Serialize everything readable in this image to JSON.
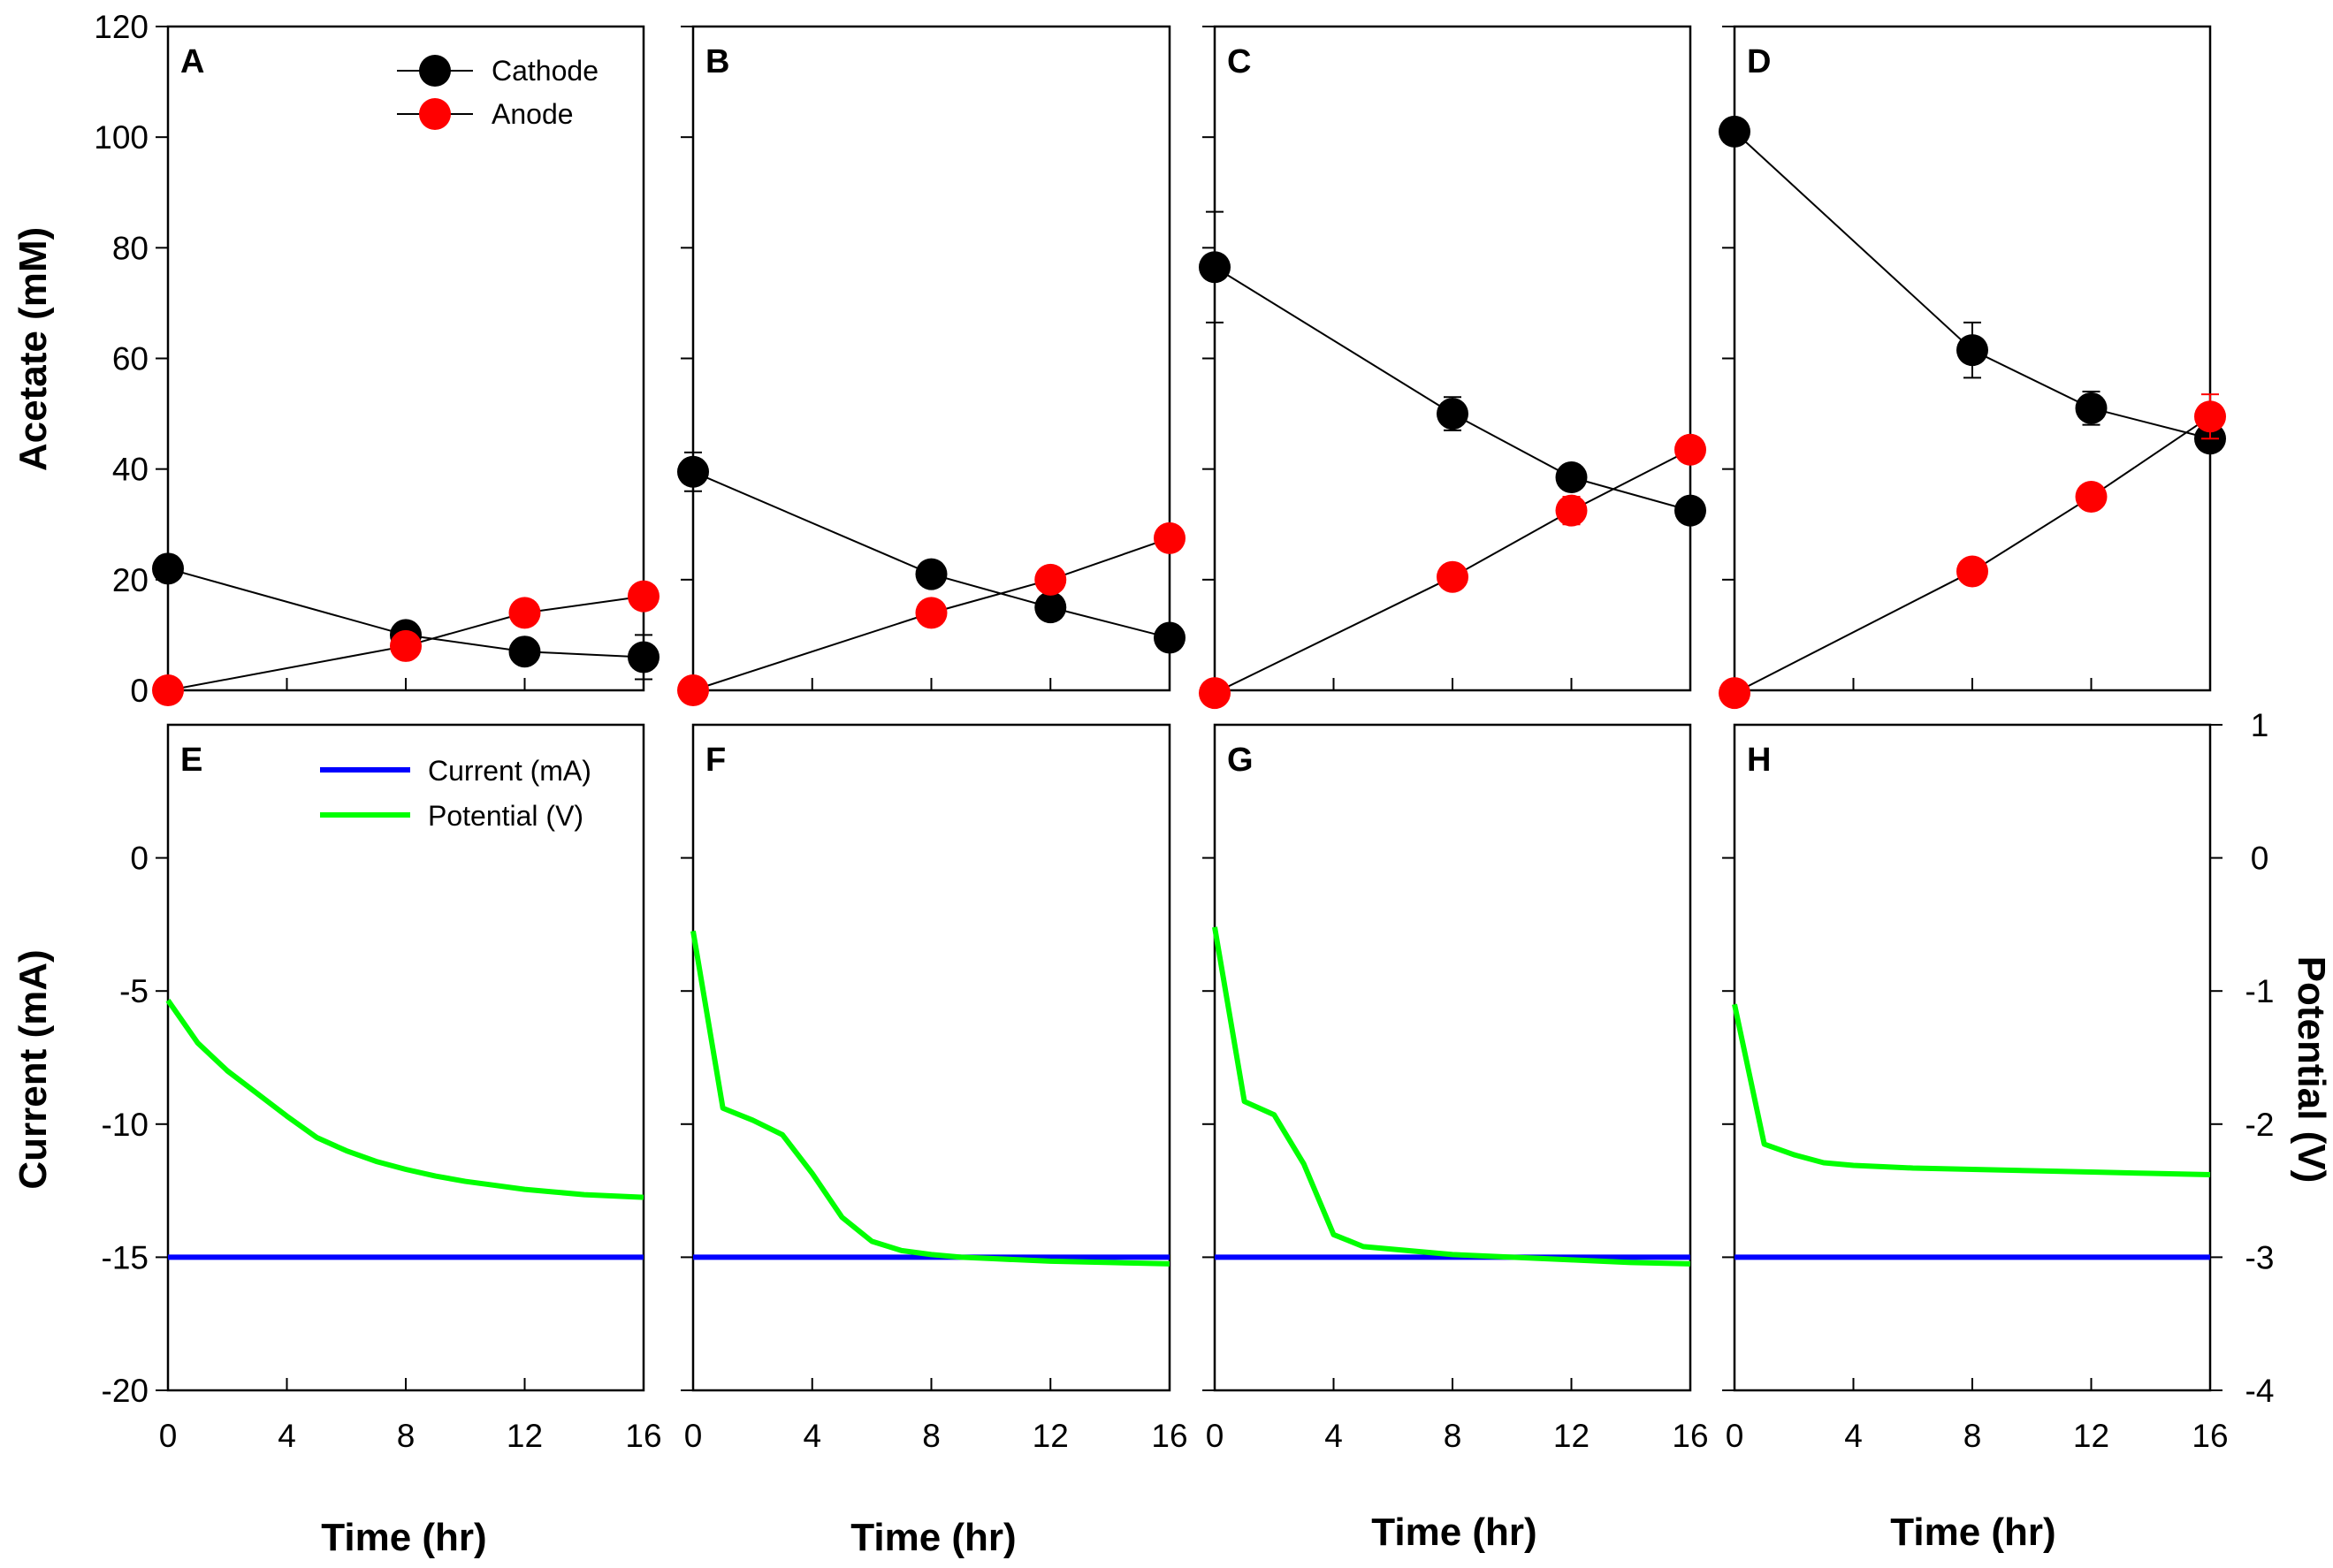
{
  "chart_data": {
    "type": "line",
    "x_axis": {
      "label": "Time (hr)",
      "ticks": [
        0,
        4,
        8,
        12,
        16
      ],
      "range": [
        0,
        16
      ]
    },
    "acetate_axis": {
      "label": "Acetate (mM)",
      "ticks": [
        0,
        20,
        40,
        60,
        80,
        100,
        120
      ],
      "range": [
        0,
        120
      ]
    },
    "current_axis": {
      "label": "Current (mA)",
      "ticks": [
        -20,
        -15,
        -10,
        -5,
        0
      ],
      "range": [
        -20,
        5
      ]
    },
    "potential_axis": {
      "label": "Potential (V)",
      "ticks": [
        -4,
        -3,
        -2,
        -1,
        0,
        1
      ],
      "range": [
        -4,
        1
      ]
    },
    "acetate_legend": [
      {
        "name": "Cathode",
        "color": "#000000"
      },
      {
        "name": "Anode",
        "color": "#ff0000"
      }
    ],
    "electrical_legend": [
      {
        "name": "Current (mA)",
        "color": "#0000ff"
      },
      {
        "name": "Potential (V)",
        "color": "#00ff00"
      }
    ],
    "acetate_panels": [
      {
        "letter": "A",
        "series": [
          {
            "name": "Cathode",
            "color": "#000000",
            "x": [
              0,
              8,
              12,
              16
            ],
            "y": [
              22,
              10,
              7,
              6
            ],
            "err": [
              1.5,
              1.5,
              2,
              4
            ]
          },
          {
            "name": "Anode",
            "color": "#ff0000",
            "x": [
              0,
              8,
              12,
              16
            ],
            "y": [
              0,
              8,
              14,
              17
            ],
            "err": [
              0,
              0,
              0,
              0
            ]
          }
        ]
      },
      {
        "letter": "B",
        "series": [
          {
            "name": "Cathode",
            "color": "#000000",
            "x": [
              0,
              8,
              12,
              16
            ],
            "y": [
              39.5,
              21,
              15,
              9.5
            ],
            "err": [
              3.5,
              0,
              0,
              0
            ]
          },
          {
            "name": "Anode",
            "color": "#ff0000",
            "x": [
              0,
              8,
              12,
              16
            ],
            "y": [
              0,
              14,
              20,
              27.5
            ],
            "err": [
              0,
              0,
              0,
              0
            ]
          }
        ]
      },
      {
        "letter": "C",
        "series": [
          {
            "name": "Cathode",
            "color": "#000000",
            "x": [
              0,
              8,
              12,
              16
            ],
            "y": [
              76.5,
              50,
              38.5,
              32.5
            ],
            "err": [
              10,
              3,
              0,
              0
            ]
          },
          {
            "name": "Anode",
            "color": "#ff0000",
            "x": [
              0,
              8,
              12,
              16
            ],
            "y": [
              -0.5,
              20.5,
              32.5,
              43.5
            ],
            "err": [
              0,
              0,
              2.5,
              2
            ]
          }
        ]
      },
      {
        "letter": "D",
        "series": [
          {
            "name": "Cathode",
            "color": "#000000",
            "x": [
              0,
              8,
              12,
              16
            ],
            "y": [
              101,
              61.5,
              51,
              45.5
            ],
            "err": [
              2,
              5,
              3,
              1
            ]
          },
          {
            "name": "Anode",
            "color": "#ff0000",
            "x": [
              0,
              8,
              12,
              16
            ],
            "y": [
              -0.5,
              21.5,
              35,
              49.5
            ],
            "err": [
              0,
              0,
              2,
              4
            ]
          }
        ]
      }
    ],
    "electrical_panels": [
      {
        "letter": "E",
        "current": {
          "x": [
            0,
            16
          ],
          "y": [
            -15,
            -15
          ]
        },
        "potential": {
          "x": [
            0,
            1,
            2,
            3,
            4,
            5,
            6,
            7,
            8,
            9,
            10,
            11,
            12,
            13,
            14,
            15,
            16
          ],
          "y": [
            -1.07,
            -1.39,
            -1.6,
            -1.77,
            -1.94,
            -2.1,
            -2.2,
            -2.28,
            -2.34,
            -2.39,
            -2.43,
            -2.46,
            -2.49,
            -2.51,
            -2.53,
            -2.54,
            -2.55
          ]
        }
      },
      {
        "letter": "F",
        "current": {
          "x": [
            0,
            16
          ],
          "y": [
            -15,
            -15
          ]
        },
        "potential": {
          "x": [
            0,
            1,
            2,
            3,
            4,
            5,
            6,
            7,
            8,
            9,
            10,
            11,
            12,
            13,
            14,
            15,
            16
          ],
          "y": [
            -0.55,
            -1.88,
            -1.97,
            -2.08,
            -2.37,
            -2.7,
            -2.88,
            -2.95,
            -2.98,
            -3.0,
            -3.01,
            -3.02,
            -3.03,
            -3.035,
            -3.04,
            -3.045,
            -3.05
          ]
        }
      },
      {
        "letter": "G",
        "current": {
          "x": [
            0,
            16
          ],
          "y": [
            -15,
            -15
          ]
        },
        "potential": {
          "x": [
            0,
            1,
            2,
            3,
            4,
            5,
            6,
            7,
            8,
            9,
            10,
            11,
            12,
            13,
            14,
            15,
            16
          ],
          "y": [
            -0.52,
            -1.83,
            -1.93,
            -2.3,
            -2.83,
            -2.92,
            -2.94,
            -2.96,
            -2.98,
            -2.99,
            -3.0,
            -3.01,
            -3.02,
            -3.03,
            -3.04,
            -3.045,
            -3.05
          ]
        }
      },
      {
        "letter": "H",
        "current": {
          "x": [
            0,
            16
          ],
          "y": [
            -15,
            -15
          ]
        },
        "potential": {
          "x": [
            0,
            1,
            2,
            3,
            4,
            5,
            6,
            8,
            10,
            12,
            14,
            16
          ],
          "y": [
            -1.1,
            -2.15,
            -2.23,
            -2.29,
            -2.31,
            -2.32,
            -2.33,
            -2.34,
            -2.35,
            -2.36,
            -2.37,
            -2.38
          ]
        }
      }
    ]
  }
}
